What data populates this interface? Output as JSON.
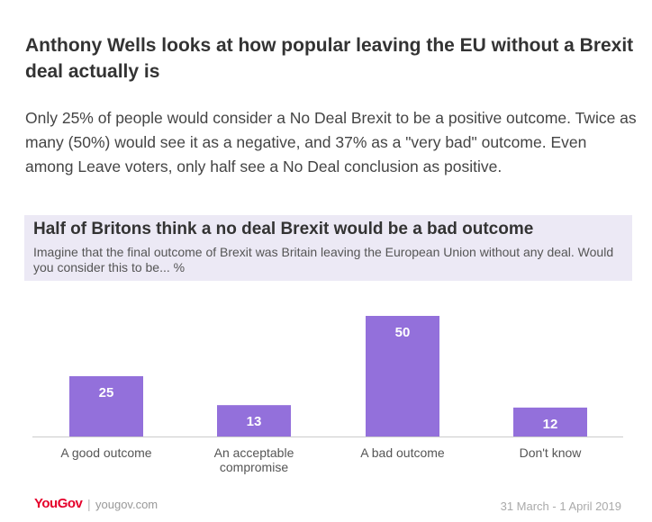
{
  "article": {
    "headline": "Anthony Wells looks at how popular leaving the EU without a Brexit deal actually is",
    "lede": "Only 25% of people would consider a No Deal Brexit to be a positive outcome. Twice as many (50%) would see it as a negative, and 37% as a \"very bad\" outcome. Even among Leave voters, only half see a No Deal conclusion as positive."
  },
  "chart_data": {
    "type": "bar",
    "title": "Half of Britons think a no deal Brexit would be a bad outcome",
    "subtitle": "Imagine that the final outcome of Brexit was Britain leaving the European Union without any deal. Would you consider this to be... %",
    "categories": [
      "A good outcome",
      "An acceptable compromise",
      "A bad outcome",
      "Don't know"
    ],
    "values": [
      25,
      13,
      50,
      12
    ],
    "xlabel": "",
    "ylabel": "",
    "ylim": [
      0,
      50
    ],
    "grid": false,
    "legend": "none",
    "bar_color": "#9370db",
    "label_color": "#ffffff"
  },
  "footer": {
    "brand": "YouGov",
    "separator": "|",
    "url": "yougov.com",
    "date": "31 March - 1 April 2019"
  }
}
